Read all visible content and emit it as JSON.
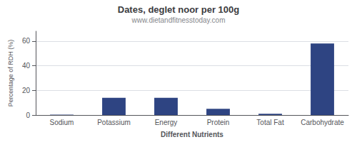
{
  "chart_data": {
    "type": "bar",
    "title": "Dates, deglet noor per 100g",
    "subtitle": "www.dietandfitnesstoday.com",
    "xlabel": "Different Nutrients",
    "ylabel": "Percentage of RDH (%)",
    "categories": [
      "Sodium",
      "Potassium",
      "Energy",
      "Protein",
      "Total Fat",
      "Carbohydrate"
    ],
    "values": [
      0.3,
      14.0,
      14.0,
      5.0,
      1.0,
      58.0
    ],
    "color": "#2e4482",
    "ylim": [
      0,
      68
    ],
    "yticks": [
      0,
      20,
      40,
      60
    ],
    "grid": true
  }
}
